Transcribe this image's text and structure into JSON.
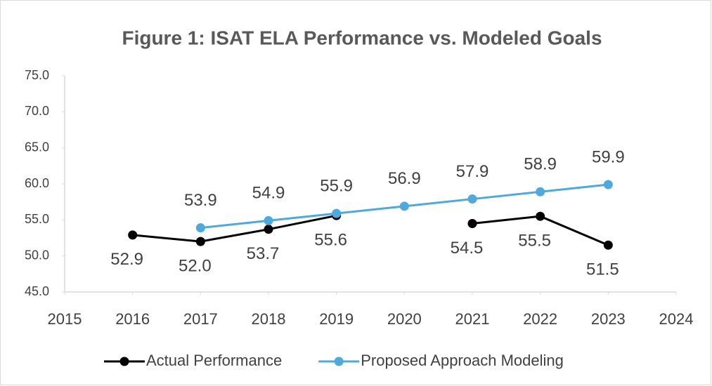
{
  "chart_data": {
    "type": "line",
    "title": "Figure 1: ISAT ELA Performance vs. Modeled Goals",
    "x": [
      2016,
      2017,
      2018,
      2019,
      2020,
      2021,
      2022,
      2023
    ],
    "series": [
      {
        "name": "Actual Performance",
        "color": "#000000",
        "values": [
          52.9,
          52.0,
          53.7,
          55.6,
          null,
          54.5,
          55.5,
          51.5
        ],
        "value_labels": [
          "52.9",
          "52.0",
          "53.7",
          "55.6",
          null,
          "54.5",
          "55.5",
          "51.5"
        ]
      },
      {
        "name": "Proposed Approach Modeling",
        "color": "#4ea9dc",
        "values": [
          null,
          53.9,
          54.9,
          55.9,
          56.9,
          57.9,
          58.9,
          59.9
        ],
        "value_labels": [
          null,
          "53.9",
          "54.9",
          "55.9",
          "56.9",
          "57.9",
          "58.9",
          "59.9"
        ]
      }
    ],
    "xlim": [
      2015,
      2024
    ],
    "xticks": [
      2015,
      2016,
      2017,
      2018,
      2019,
      2020,
      2021,
      2022,
      2023,
      2024
    ],
    "ylim": [
      45,
      75
    ],
    "yticks": [
      {
        "value": 45,
        "label": "45.0"
      },
      {
        "value": 50,
        "label": "50.0"
      },
      {
        "value": 55,
        "label": "55.0"
      },
      {
        "value": 60,
        "label": "60.0"
      },
      {
        "value": 65,
        "label": "65.0"
      },
      {
        "value": 70,
        "label": "70.0"
      },
      {
        "value": 75,
        "label": "75.0"
      }
    ],
    "legend": "bottom"
  }
}
